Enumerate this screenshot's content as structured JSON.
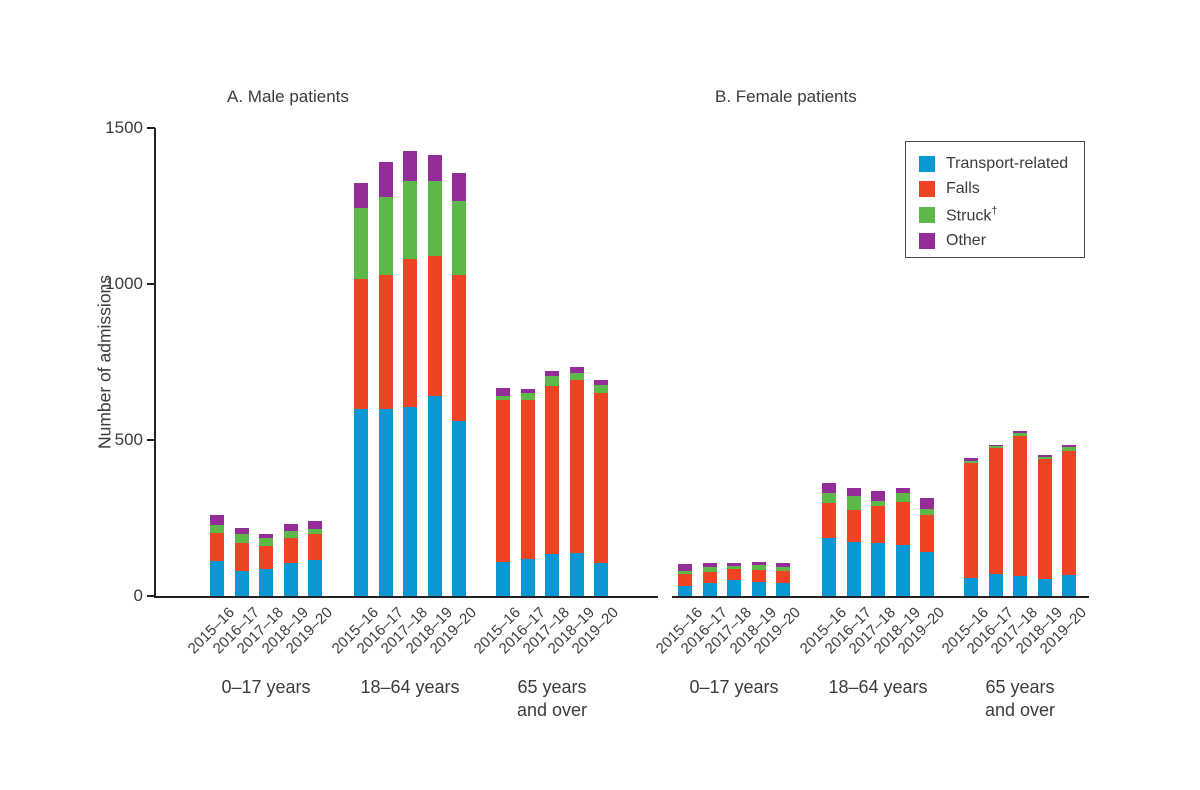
{
  "figure": {
    "background": "#ffffff",
    "axis_color": "#231f20",
    "text_color": "#3b3b3b"
  },
  "legend": {
    "items": [
      {
        "label": "Transport-related",
        "color": "#0998d4"
      },
      {
        "label": "Falls",
        "color": "#ee4423"
      },
      {
        "label": "Struck†",
        "color": "#5bb849"
      },
      {
        "label": "Other",
        "color": "#942d97"
      }
    ]
  },
  "chart_data": {
    "type": "bar",
    "stacked": true,
    "ylabel": "Number of admissions",
    "ylim": [
      0,
      1500
    ],
    "yticks": [
      0,
      500,
      1000,
      1500
    ],
    "grid": false,
    "legend_position": "top-right-box",
    "x_years": [
      "2015–16",
      "2016–17",
      "2017–18",
      "2018–19",
      "2019–20"
    ],
    "age_groups": [
      "0–17 years",
      "18–64 years",
      "65 years\nand over"
    ],
    "series_names": [
      "Transport-related",
      "Falls",
      "Struck†",
      "Other"
    ],
    "panels": [
      {
        "label": "A. Male patients",
        "groups": [
          {
            "age_group": "0–17 years",
            "series": [
              {
                "name": "Transport-related",
                "values": [
                  112,
                  80,
                  86,
                  107,
                  115
                ]
              },
              {
                "name": "Falls",
                "values": [
                  91,
                  91,
                  74,
                  78,
                  83
                ]
              },
              {
                "name": "Struck†",
                "values": [
                  24,
                  27,
                  25,
                  24,
                  18
                ]
              },
              {
                "name": "Other",
                "values": [
                  32,
                  20,
                  15,
                  23,
                  25
                ]
              }
            ]
          },
          {
            "age_group": "18–64 years",
            "series": [
              {
                "name": "Transport-related",
                "values": [
                  600,
                  600,
                  607,
                  640,
                  560
                ]
              },
              {
                "name": "Falls",
                "values": [
                  415,
                  430,
                  473,
                  450,
                  470
                ]
              },
              {
                "name": "Struck†",
                "values": [
                  230,
                  250,
                  250,
                  240,
                  235
                ]
              },
              {
                "name": "Other",
                "values": [
                  80,
                  110,
                  95,
                  85,
                  90
                ]
              }
            ]
          },
          {
            "age_group": "65 years\nand over",
            "series": [
              {
                "name": "Transport-related",
                "values": [
                  108,
                  118,
                  134,
                  139,
                  107
                ]
              },
              {
                "name": "Falls",
                "values": [
                  520,
                  510,
                  540,
                  553,
                  543
                ]
              },
              {
                "name": "Struck†",
                "values": [
                  14,
                  22,
                  30,
                  24,
                  26
                ]
              },
              {
                "name": "Other",
                "values": [
                  24,
                  15,
                  16,
                  19,
                  16
                ]
              }
            ]
          }
        ]
      },
      {
        "label": "B. Female patients",
        "groups": [
          {
            "age_group": "0–17 years",
            "series": [
              {
                "name": "Transport-related",
                "values": [
                  32,
                  43,
                  51,
                  46,
                  43
                ]
              },
              {
                "name": "Falls",
                "values": [
                  38,
                  35,
                  35,
                  37,
                  38
                ]
              },
              {
                "name": "Struck†",
                "values": [
                  11,
                  16,
                  10,
                  16,
                  11
                ]
              },
              {
                "name": "Other",
                "values": [
                  21,
                  11,
                  9,
                  11,
                  15
                ]
              }
            ]
          },
          {
            "age_group": "18–64 years",
            "series": [
              {
                "name": "Transport-related",
                "values": [
                  185,
                  174,
                  169,
                  164,
                  142
                ]
              },
              {
                "name": "Falls",
                "values": [
                  112,
                  102,
                  120,
                  138,
                  118
                ]
              },
              {
                "name": "Struck†",
                "values": [
                  34,
                  45,
                  17,
                  27,
                  19
                ]
              },
              {
                "name": "Other",
                "values": [
                  30,
                  25,
                  29,
                  16,
                  35
                ]
              }
            ]
          },
          {
            "age_group": "65 years\nand over",
            "series": [
              {
                "name": "Transport-related",
                "values": [
                  57,
                  70,
                  64,
                  54,
                  67
                ]
              },
              {
                "name": "Falls",
                "values": [
                  370,
                  403,
                  449,
                  384,
                  399
                ]
              },
              {
                "name": "Struck†",
                "values": [
                  7,
                  8,
                  8,
                  7,
                  11
                ]
              },
              {
                "name": "Other",
                "values": [
                  8,
                  4,
                  9,
                  7,
                  7
                ]
              }
            ]
          }
        ]
      }
    ]
  }
}
